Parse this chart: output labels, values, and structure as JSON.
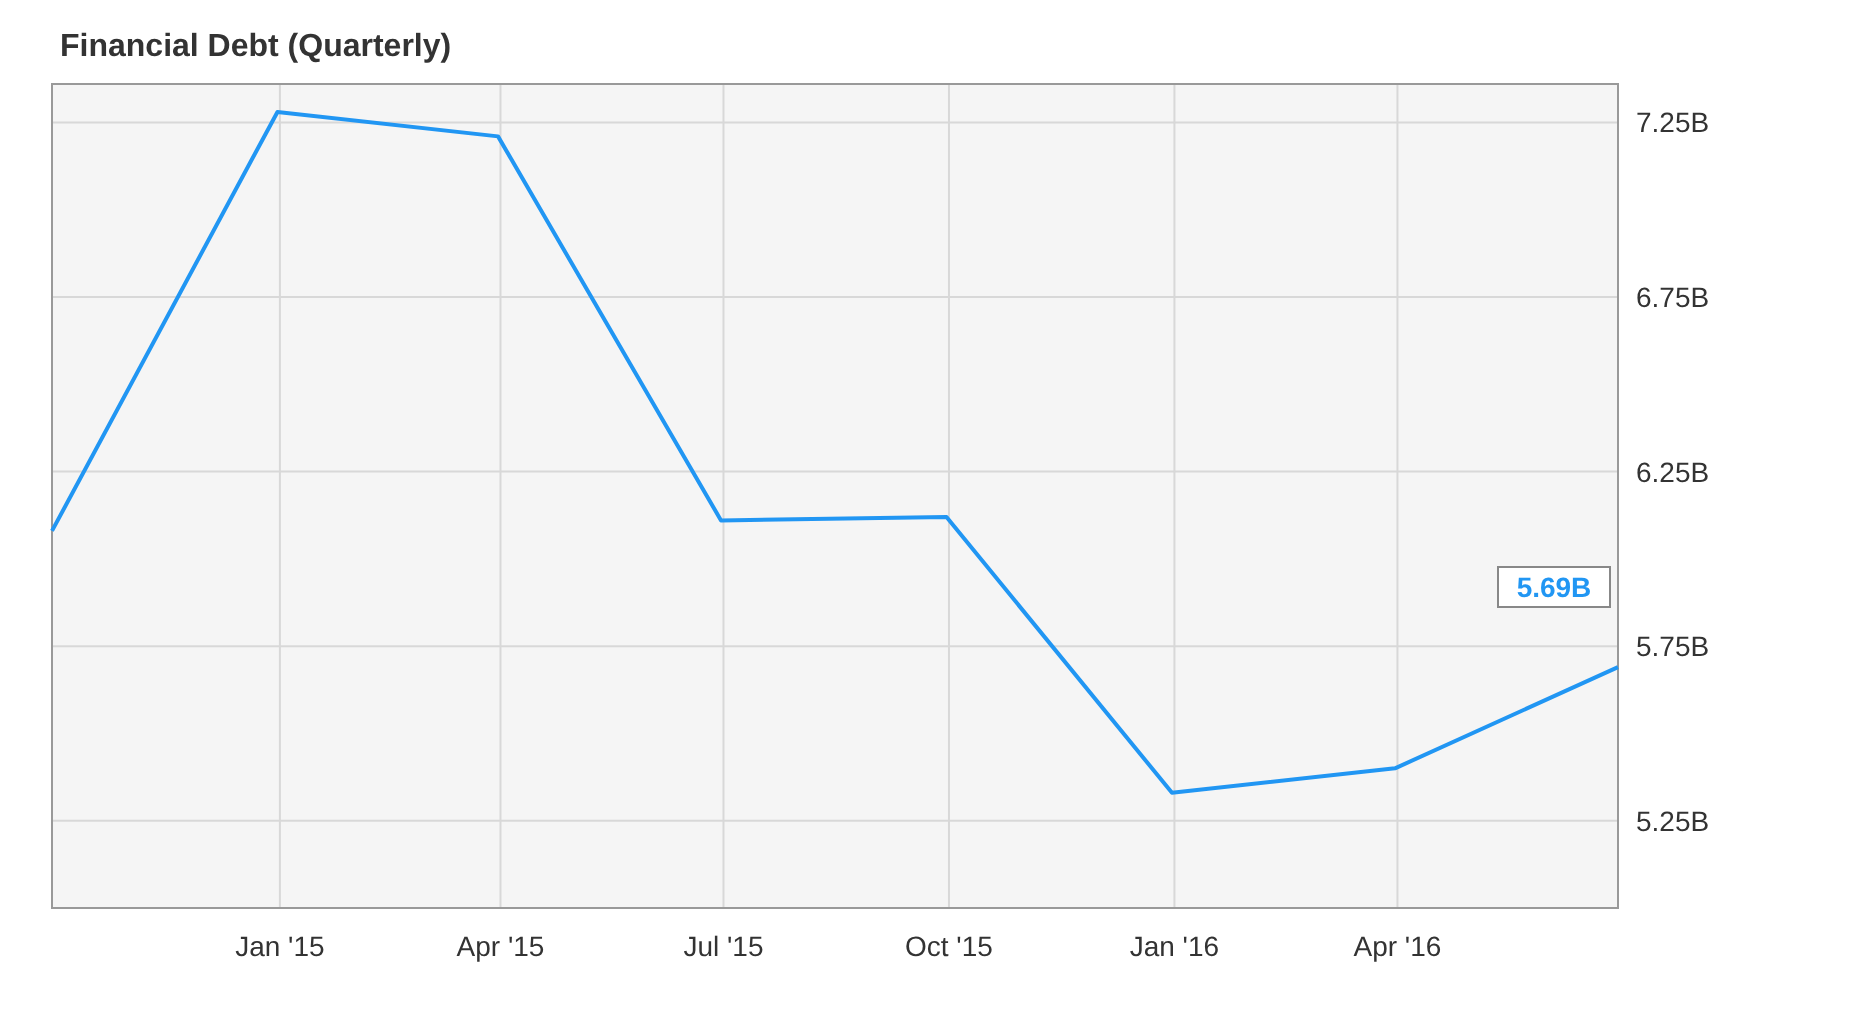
{
  "chart_data": {
    "type": "line",
    "title": "Financial Debt (Quarterly)",
    "x": [
      "2014-09-30",
      "2014-12-31",
      "2015-03-31",
      "2015-06-30",
      "2015-09-30",
      "2015-12-31",
      "2016-03-31",
      "2016-06-30"
    ],
    "series": [
      {
        "color": "#2196f3",
        "values": [
          6.08,
          7.28,
          7.21,
          6.11,
          6.12,
          5.33,
          5.4,
          5.69
        ],
        "value_labels": [
          null,
          null,
          null,
          null,
          null,
          null,
          null,
          "5.69B"
        ]
      }
    ],
    "xlim": [
      "2014-09-30",
      "2016-06-30"
    ],
    "xticks": [
      {
        "value": "2015-01-01",
        "label": "Jan '15"
      },
      {
        "value": "2015-04-01",
        "label": "Apr '15"
      },
      {
        "value": "2015-07-01",
        "label": "Jul '15"
      },
      {
        "value": "2015-10-01",
        "label": "Oct '15"
      },
      {
        "value": "2016-01-01",
        "label": "Jan '16"
      },
      {
        "value": "2016-04-01",
        "label": "Apr '16"
      }
    ],
    "ylim": [
      5.0,
      7.36
    ],
    "yticks": [
      {
        "value": 5.25,
        "label": "5.25B"
      },
      {
        "value": 5.75,
        "label": "5.75B"
      },
      {
        "value": 6.25,
        "label": "6.25B"
      },
      {
        "value": 6.75,
        "label": "6.75B"
      },
      {
        "value": 7.25,
        "label": "7.25B"
      }
    ],
    "grid": true,
    "marker": "none",
    "line_style": "solid"
  }
}
